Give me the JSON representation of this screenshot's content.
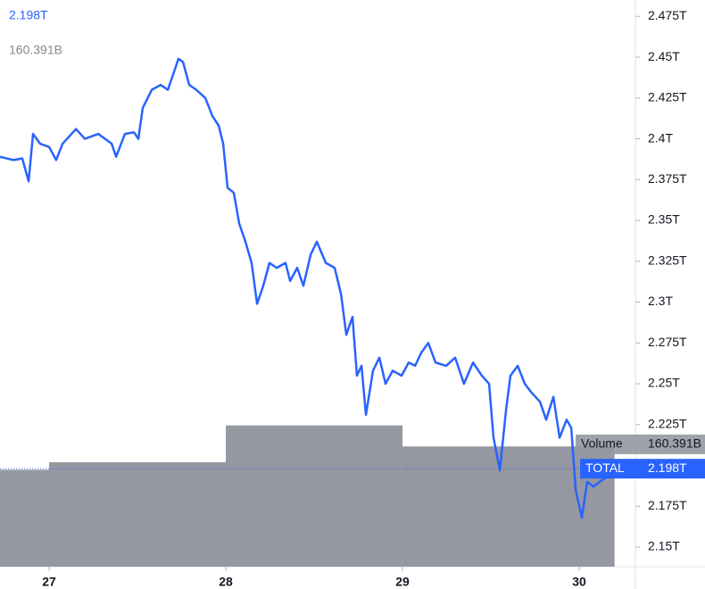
{
  "chart_data": {
    "type": "line",
    "xlim": [
      26.722,
      30.318
    ],
    "xticks": [
      27,
      28,
      29,
      30
    ],
    "ylim": [
      2.138,
      2.485
    ],
    "yticks": [
      {
        "value": 2.475,
        "label": "2.475T"
      },
      {
        "value": 2.45,
        "label": "2.45T"
      },
      {
        "value": 2.425,
        "label": "2.425T"
      },
      {
        "value": 2.4,
        "label": "2.4T"
      },
      {
        "value": 2.375,
        "label": "2.375T"
      },
      {
        "value": 2.35,
        "label": "2.35T"
      },
      {
        "value": 2.325,
        "label": "2.325T"
      },
      {
        "value": 2.3,
        "label": "2.3T"
      },
      {
        "value": 2.275,
        "label": "2.275T"
      },
      {
        "value": 2.25,
        "label": "2.25T"
      },
      {
        "value": 2.225,
        "label": "2.225T"
      },
      {
        "value": 2.175,
        "label": "2.175T"
      },
      {
        "value": 2.15,
        "label": "2.15T"
      }
    ],
    "y2lim": [
      0,
      754
    ],
    "series": [
      {
        "name": "TOTAL",
        "color": "#2962ff",
        "current_value": 2.198,
        "current_label": "2.198T",
        "x": [
          26.722,
          26.798,
          26.848,
          26.884,
          26.909,
          26.949,
          27,
          27.04,
          27.076,
          27.152,
          27.202,
          27.278,
          27.354,
          27.379,
          27.429,
          27.48,
          27.505,
          27.53,
          27.581,
          27.631,
          27.672,
          27.707,
          27.732,
          27.758,
          27.793,
          27.833,
          27.884,
          27.924,
          27.96,
          27.985,
          28.01,
          28.045,
          28.076,
          28.111,
          28.146,
          28.177,
          28.212,
          28.247,
          28.288,
          28.338,
          28.364,
          28.404,
          28.439,
          28.48,
          28.515,
          28.566,
          28.616,
          28.652,
          28.682,
          28.717,
          28.742,
          28.768,
          28.793,
          28.833,
          28.869,
          28.904,
          28.944,
          28.995,
          29.035,
          29.071,
          29.106,
          29.146,
          29.187,
          29.247,
          29.298,
          29.348,
          29.399,
          29.449,
          29.49,
          29.515,
          29.551,
          29.586,
          29.611,
          29.652,
          29.692,
          29.727,
          29.778,
          29.813,
          29.854,
          29.889,
          29.929,
          29.955,
          29.98,
          30.015,
          30.045,
          30.081,
          30.116,
          30.157,
          30.187
        ],
        "values": [
          2.389,
          2.387,
          2.388,
          2.374,
          2.403,
          2.397,
          2.395,
          2.387,
          2.397,
          2.406,
          2.4,
          2.403,
          2.397,
          2.389,
          2.403,
          2.404,
          2.4,
          2.419,
          2.43,
          2.433,
          2.43,
          2.441,
          2.449,
          2.447,
          2.433,
          2.43,
          2.425,
          2.414,
          2.408,
          2.397,
          2.37,
          2.367,
          2.348,
          2.337,
          2.324,
          2.299,
          2.31,
          2.324,
          2.321,
          2.324,
          2.313,
          2.321,
          2.31,
          2.329,
          2.337,
          2.324,
          2.321,
          2.305,
          2.28,
          2.291,
          2.255,
          2.261,
          2.231,
          2.258,
          2.266,
          2.25,
          2.258,
          2.255,
          2.263,
          2.261,
          2.269,
          2.275,
          2.263,
          2.261,
          2.266,
          2.25,
          2.263,
          2.255,
          2.25,
          2.217,
          2.197,
          2.234,
          2.255,
          2.261,
          2.25,
          2.245,
          2.239,
          2.228,
          2.242,
          2.217,
          2.228,
          2.223,
          2.185,
          2.168,
          2.19,
          2.187,
          2.19,
          2.193,
          2.198
        ]
      }
    ],
    "volume": {
      "name": "Volume",
      "color": "#9598a1",
      "axis": "y2",
      "current_label": "160.391B",
      "bins": [
        26.722,
        27,
        28,
        29,
        30,
        30.2
      ],
      "values": [
        129,
        139,
        188,
        160,
        160.391
      ]
    }
  }
}
